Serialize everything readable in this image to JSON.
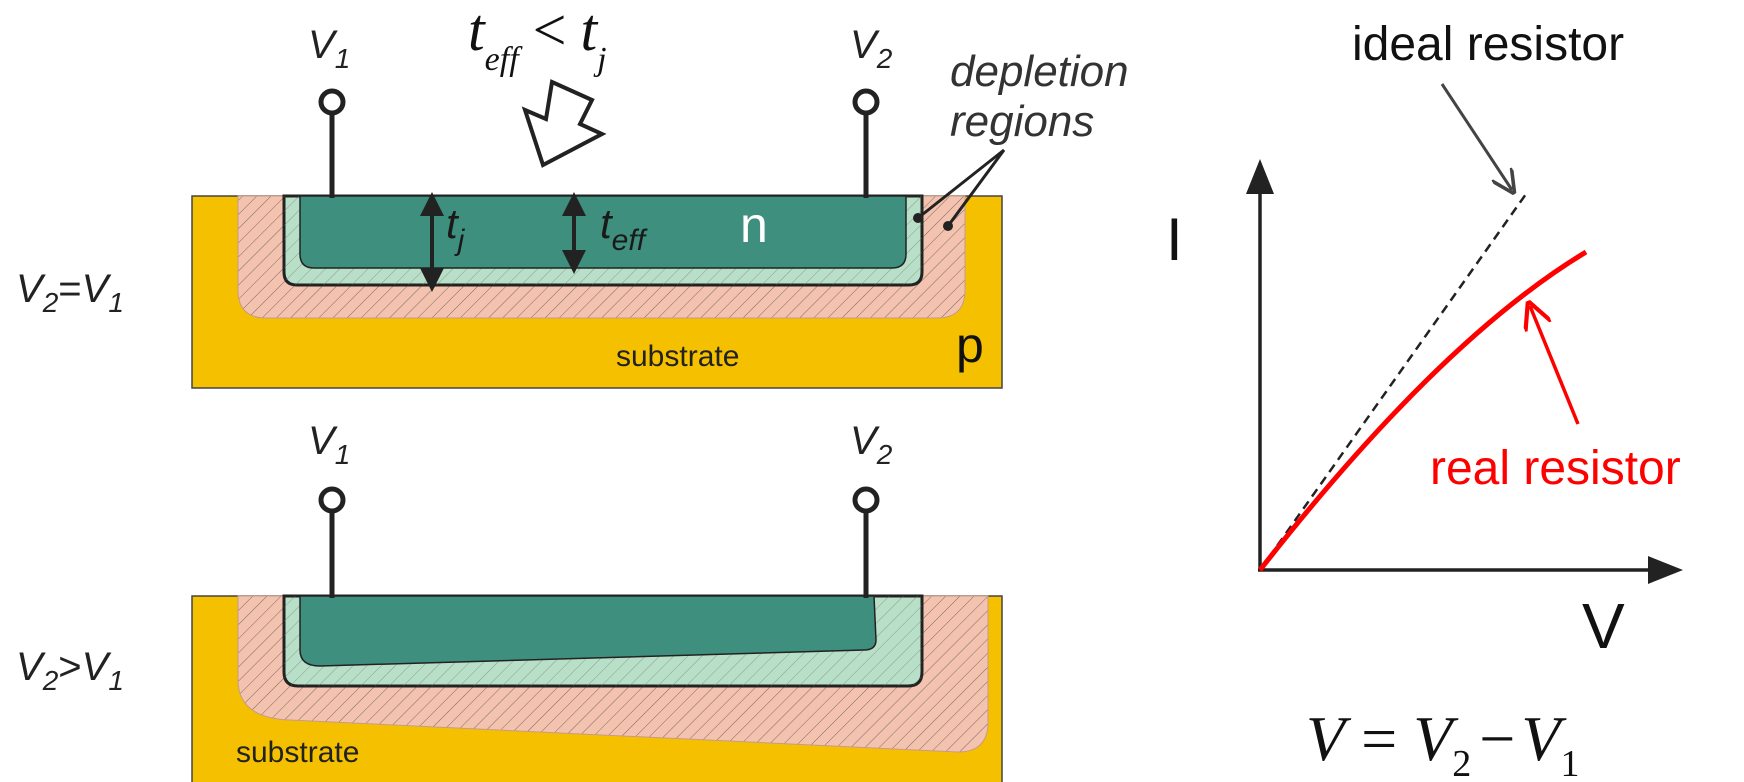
{
  "top_section": {
    "terminal_v1": {
      "base": "V",
      "sub": "1"
    },
    "terminal_v2": {
      "base": "V",
      "sub": "2"
    },
    "condition": {
      "lhs_base": "V",
      "lhs_sub": "2",
      "op": "=",
      "rhs_base": "V",
      "rhs_sub": "1"
    },
    "inequality": {
      "lhs_base": "t",
      "lhs_sub": "eff",
      "op": "<",
      "rhs_base": "t",
      "rhs_sub": "j"
    },
    "depletion_label_line1": "depletion",
    "depletion_label_line2": "regions",
    "tj_label": {
      "base": "t",
      "sub": "j"
    },
    "teff_label": {
      "base": "t",
      "sub": "eff"
    },
    "n_label": "n",
    "p_label": "p",
    "substrate_label": "substrate"
  },
  "bottom_section": {
    "terminal_v1": {
      "base": "V",
      "sub": "1"
    },
    "terminal_v2": {
      "base": "V",
      "sub": "2"
    },
    "condition": {
      "lhs_base": "V",
      "lhs_sub": "2",
      "op": ">",
      "rhs_base": "V",
      "rhs_sub": "1"
    },
    "substrate_label": "substrate"
  },
  "graph": {
    "y_axis_label": "I",
    "x_axis_label": "V",
    "ideal_label": "ideal resistor",
    "real_label": "real resistor",
    "equation": {
      "lhs": "V",
      "eq": "=",
      "a_base": "V",
      "a_sub": "2",
      "minus": "−",
      "b_base": "V",
      "b_sub": "1"
    }
  },
  "colors": {
    "substrate": "#f5c000",
    "depletion_p": "#f4c3b0",
    "depletion_n": "#b8e0c8",
    "n_region": "#3f8f7f",
    "real_curve": "#ff0000",
    "outline": "#222222"
  }
}
